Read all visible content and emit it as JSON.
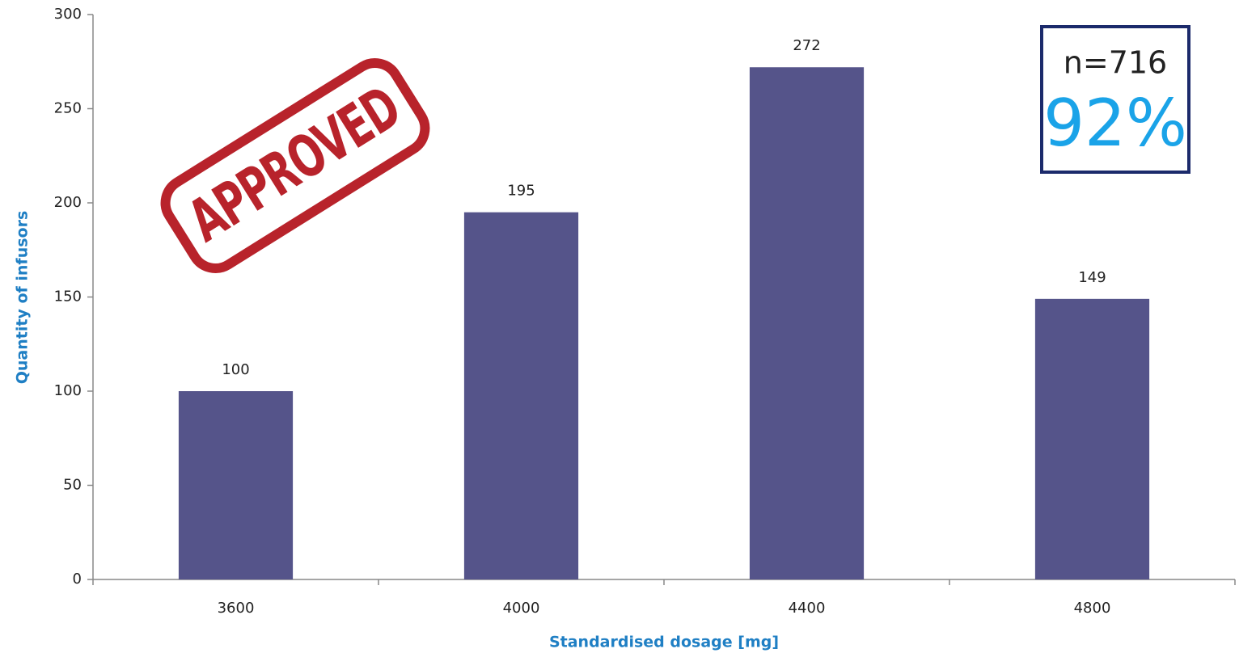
{
  "chart_data": {
    "type": "bar",
    "x_label": "Standardised dosage [mg]",
    "y_label": "Quantity of infusors",
    "categories": [
      "3600",
      "4000",
      "4400",
      "4800"
    ],
    "values": [
      100,
      195,
      272,
      149
    ],
    "color": "#55548a",
    "ylim": [
      0,
      300
    ],
    "yticks": [
      0,
      50,
      100,
      150,
      200,
      250,
      300
    ],
    "grid": false,
    "annotations": {
      "stamp": "APPROVED",
      "sample": "n=716",
      "rate": "92%"
    }
  }
}
